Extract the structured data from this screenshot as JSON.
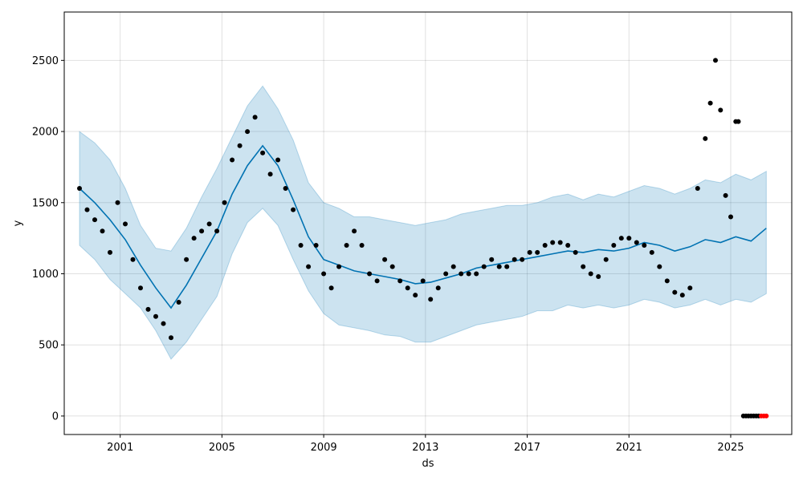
{
  "chart_data": {
    "type": "scatter",
    "xlabel": "ds",
    "ylabel": "y",
    "xlim": [
      1998.8,
      2027.4
    ],
    "ylim": [
      -130,
      2840
    ],
    "grid": true,
    "x_ticks": [
      2001,
      2005,
      2009,
      2013,
      2017,
      2021,
      2025
    ],
    "y_ticks": [
      0,
      500,
      1000,
      1500,
      2000,
      2500
    ],
    "colors": {
      "observed": "#000000",
      "forecast": "#0072B2",
      "interval": "#0072B2",
      "outliers": "#ff0000"
    },
    "series": [
      {
        "kind": "interval",
        "x": [
          1999.4,
          2000.0,
          2000.6,
          2001.2,
          2001.8,
          2002.4,
          2003.0,
          2003.6,
          2004.2,
          2004.8,
          2005.4,
          2006.0,
          2006.6,
          2007.2,
          2007.8,
          2008.4,
          2009.0,
          2009.6,
          2010.2,
          2010.8,
          2011.4,
          2012.0,
          2012.6,
          2013.2,
          2013.8,
          2014.4,
          2015.0,
          2015.6,
          2016.2,
          2016.8,
          2017.4,
          2018.0,
          2018.6,
          2019.2,
          2019.8,
          2020.4,
          2021.0,
          2021.6,
          2022.2,
          2022.8,
          2023.4,
          2024.0,
          2024.6,
          2025.2,
          2025.8,
          2026.4
        ],
        "lower": [
          1200,
          1100,
          960,
          860,
          760,
          600,
          400,
          520,
          680,
          840,
          1140,
          1360,
          1460,
          1340,
          1100,
          880,
          720,
          640,
          620,
          600,
          570,
          560,
          520,
          520,
          560,
          600,
          640,
          660,
          680,
          700,
          740,
          740,
          780,
          760,
          780,
          760,
          780,
          820,
          800,
          760,
          780,
          820,
          780,
          820,
          800,
          860
        ],
        "upper": [
          2000,
          1920,
          1800,
          1600,
          1340,
          1180,
          1160,
          1320,
          1540,
          1740,
          1960,
          2180,
          2320,
          2160,
          1940,
          1640,
          1500,
          1460,
          1400,
          1400,
          1380,
          1360,
          1340,
          1360,
          1380,
          1420,
          1440,
          1460,
          1480,
          1480,
          1500,
          1540,
          1560,
          1520,
          1560,
          1540,
          1580,
          1620,
          1600,
          1560,
          1600,
          1660,
          1640,
          1700,
          1660,
          1720
        ]
      },
      {
        "kind": "forecast",
        "x": [
          1999.4,
          2000.0,
          2000.6,
          2001.2,
          2001.8,
          2002.4,
          2003.0,
          2003.6,
          2004.2,
          2004.8,
          2005.4,
          2006.0,
          2006.6,
          2007.2,
          2007.8,
          2008.4,
          2009.0,
          2009.6,
          2010.2,
          2010.8,
          2011.4,
          2012.0,
          2012.6,
          2013.2,
          2013.8,
          2014.4,
          2015.0,
          2015.6,
          2016.2,
          2016.8,
          2017.4,
          2018.0,
          2018.6,
          2019.2,
          2019.8,
          2020.4,
          2021.0,
          2021.6,
          2022.2,
          2022.8,
          2023.4,
          2024.0,
          2024.6,
          2025.2,
          2025.8,
          2026.4
        ],
        "y": [
          1600,
          1500,
          1380,
          1240,
          1060,
          900,
          760,
          920,
          1110,
          1300,
          1560,
          1760,
          1900,
          1760,
          1520,
          1260,
          1100,
          1060,
          1020,
          1000,
          980,
          960,
          930,
          940,
          970,
          1000,
          1040,
          1060,
          1080,
          1100,
          1120,
          1140,
          1160,
          1150,
          1170,
          1160,
          1180,
          1220,
          1200,
          1160,
          1190,
          1240,
          1220,
          1260,
          1230,
          1320
        ]
      },
      {
        "kind": "observed",
        "x": [
          1999.4,
          1999.7,
          2000.0,
          2000.3,
          2000.6,
          2000.9,
          2001.2,
          2001.5,
          2001.8,
          2002.1,
          2002.4,
          2002.7,
          2003.0,
          2003.3,
          2003.6,
          2003.9,
          2004.2,
          2004.5,
          2004.8,
          2005.1,
          2005.4,
          2005.7,
          2006.0,
          2006.3,
          2006.6,
          2006.9,
          2007.2,
          2007.5,
          2007.8,
          2008.1,
          2008.4,
          2008.7,
          2009.0,
          2009.3,
          2009.6,
          2009.9,
          2010.2,
          2010.5,
          2010.8,
          2011.1,
          2011.4,
          2011.7,
          2012.0,
          2012.3,
          2012.6,
          2012.9,
          2013.2,
          2013.5,
          2013.8,
          2014.1,
          2014.4,
          2014.7,
          2015.0,
          2015.3,
          2015.6,
          2015.9,
          2016.2,
          2016.5,
          2016.8,
          2017.1,
          2017.4,
          2017.7,
          2018.0,
          2018.3,
          2018.6,
          2018.9,
          2019.2,
          2019.5,
          2019.8,
          2020.1,
          2020.4,
          2020.7,
          2021.0,
          2021.3,
          2021.6,
          2021.9,
          2022.2,
          2022.5,
          2022.8,
          2023.1,
          2023.4,
          2023.7,
          2024.0,
          2024.2,
          2024.4,
          2024.6,
          2024.8,
          2025.0,
          2025.2,
          2025.3
        ],
        "y": [
          1600,
          1450,
          1380,
          1300,
          1150,
          1500,
          1350,
          1100,
          900,
          750,
          700,
          650,
          550,
          800,
          1100,
          1250,
          1300,
          1350,
          1300,
          1500,
          1800,
          1900,
          2000,
          2100,
          1850,
          1700,
          1800,
          1600,
          1450,
          1200,
          1050,
          1200,
          1000,
          900,
          1050,
          1200,
          1300,
          1200,
          1000,
          950,
          1100,
          1050,
          950,
          900,
          850,
          950,
          820,
          900,
          1000,
          1050,
          1000,
          1000,
          1000,
          1050,
          1100,
          1050,
          1050,
          1100,
          1100,
          1150,
          1150,
          1200,
          1220,
          1220,
          1200,
          1150,
          1050,
          1000,
          980,
          1100,
          1200,
          1250,
          1250,
          1220,
          1200,
          1150,
          1050,
          950,
          870,
          850,
          900,
          1600,
          1950,
          2200,
          2500,
          2150,
          1550,
          1400,
          2070,
          2070
        ]
      },
      {
        "kind": "observed-tail",
        "x": [
          2025.5,
          2025.6,
          2025.7,
          2025.8,
          2025.9,
          2026.0,
          2026.1
        ],
        "y": [
          0,
          0,
          0,
          0,
          0,
          0,
          0
        ]
      },
      {
        "kind": "outliers",
        "x": [
          2026.2,
          2026.3,
          2026.4
        ],
        "y": [
          0,
          0,
          0
        ]
      }
    ]
  }
}
